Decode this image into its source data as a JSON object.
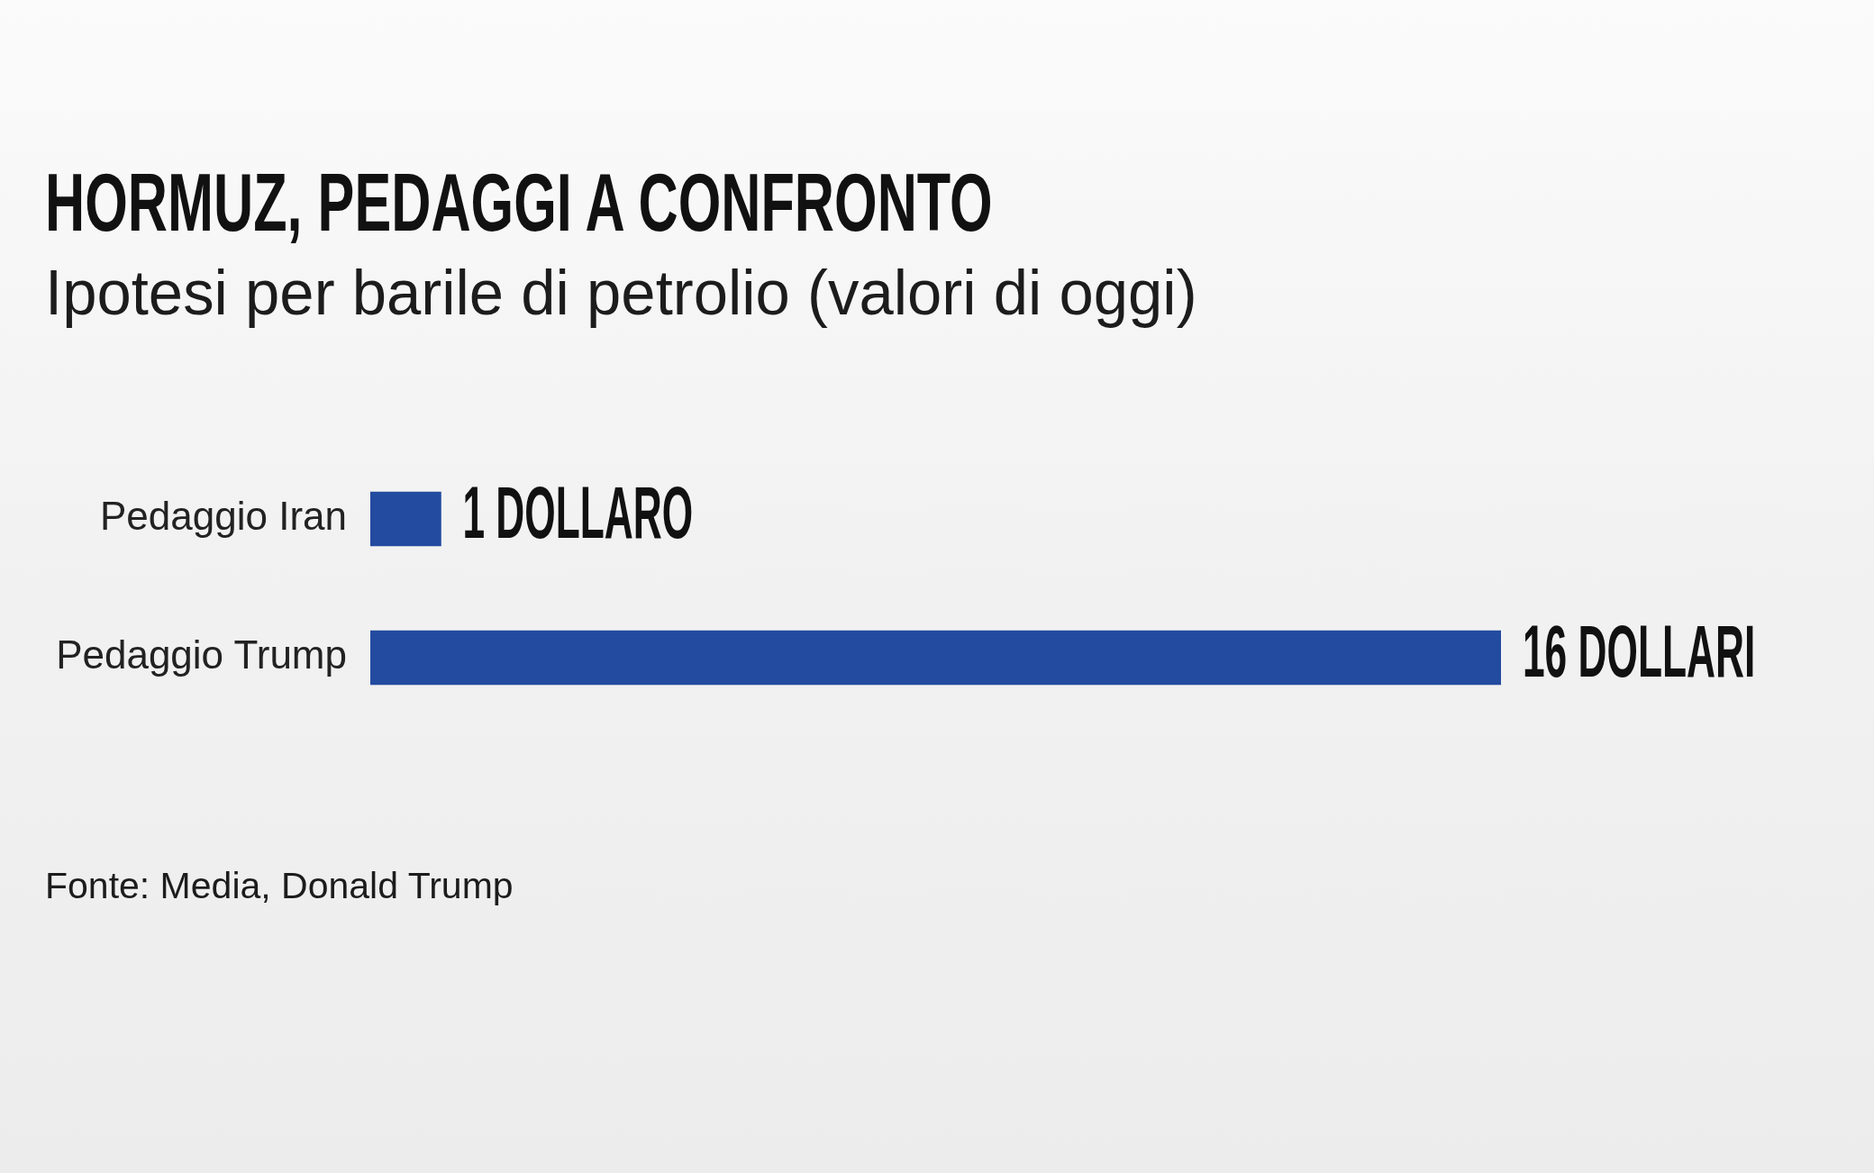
{
  "chart_data": {
    "type": "bar",
    "orientation": "horizontal",
    "title": "HORMUZ, PEDAGGI A CONFRONTO",
    "subtitle": "Ipotesi per barile di petrolio (valori di oggi)",
    "categories": [
      "Pedaggio Iran",
      "Pedaggio Trump"
    ],
    "values": [
      1,
      16
    ],
    "value_labels": [
      "1 DOLLARO",
      "16 DOLLARI"
    ],
    "color": "#234b9f",
    "tick_labels": "y",
    "annotations": [
      "Fonte: Media, Donald Trump"
    ]
  }
}
